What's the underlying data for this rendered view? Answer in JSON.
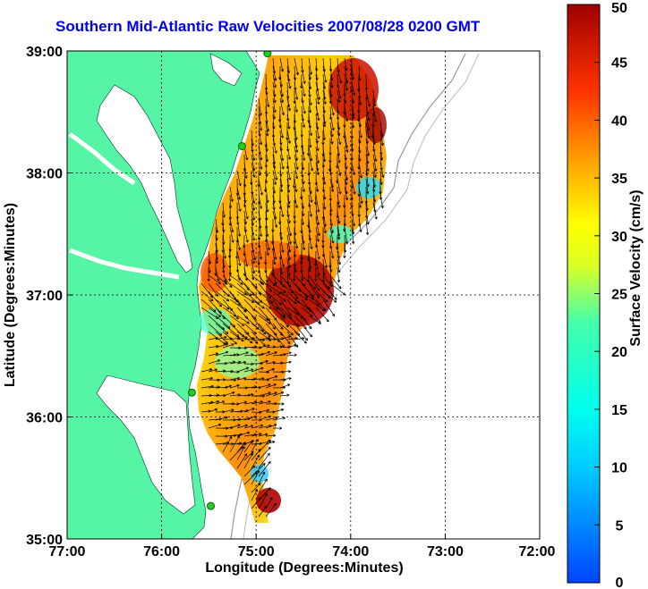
{
  "title": "Southern Mid-Atlantic Raw Velocities 2007/08/28 0200 GMT",
  "xlabel": "Longitude (Degrees:Minutes)",
  "ylabel": "Latitude (Degrees:Minutes)",
  "x_ticks": [
    "77:00",
    "76:00",
    "75:00",
    "74:00",
    "73:00",
    "72:00"
  ],
  "y_ticks": [
    "39:00",
    "38:00",
    "37:00",
    "36:00",
    "35:00"
  ],
  "colorbar": {
    "label": "Surface Velocity (cm/s)",
    "ticks": [
      "50",
      "45",
      "40",
      "35",
      "30",
      "25",
      "20",
      "15",
      "10",
      "5",
      "0"
    ]
  },
  "colors": {
    "land": "#55f5a5",
    "water": "#ffffff",
    "title": "#0000ee",
    "bathymetry": "#999999",
    "station": "#22cc22"
  },
  "chart_data": {
    "type": "map-vector-field",
    "xlim": [
      -77,
      -72
    ],
    "ylim": [
      35,
      39
    ],
    "grid": true,
    "colorbar_range": [
      0,
      50
    ],
    "stations": [
      {
        "lon": -74.88,
        "lat": 38.98
      },
      {
        "lon": -75.15,
        "lat": 38.22
      },
      {
        "lon": -75.68,
        "lat": 36.2
      },
      {
        "lon": -75.48,
        "lat": 35.27
      }
    ]
  }
}
